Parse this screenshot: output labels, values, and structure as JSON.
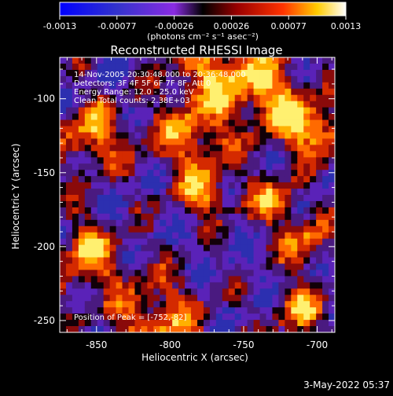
{
  "colorbar": {
    "ticks": [
      "-0.0013",
      "-0.00077",
      "-0.00026",
      "0.00026",
      "0.00077",
      "0.0013"
    ],
    "units_line": "(photons cm⁻² s⁻¹ asec⁻²)"
  },
  "chart_data": {
    "type": "heatmap",
    "title": "Reconstructed RHESSI Image",
    "xlabel": "Heliocentric X (arcsec)",
    "ylabel": "Heliocentric Y (arcsec)",
    "xlim": [
      -875,
      -688
    ],
    "ylim": [
      -258,
      -72
    ],
    "x_ticks": [
      -850,
      -800,
      -750,
      -700
    ],
    "y_ticks": [
      -100,
      -150,
      -200,
      -250
    ],
    "colorbar_range": [
      -0.0013,
      0.0013
    ],
    "peak_position": [
      -752,
      -82
    ],
    "annotations": [
      "14-Nov-2005 20:30:48.000 to 20:36:48.000",
      "Detectors: 3F 4F 5F 6F 7F 8F, Att 0",
      "Energy Range: 12.0 - 25.0 keV",
      "Clean     Total counts: 2.38E+03",
      "Position of Peak = [-752,-82]"
    ]
  },
  "footer": {
    "timestamp": "3-May-2022 05:37"
  },
  "colors": {
    "background": "#000000",
    "foreground": "#ffffff"
  }
}
